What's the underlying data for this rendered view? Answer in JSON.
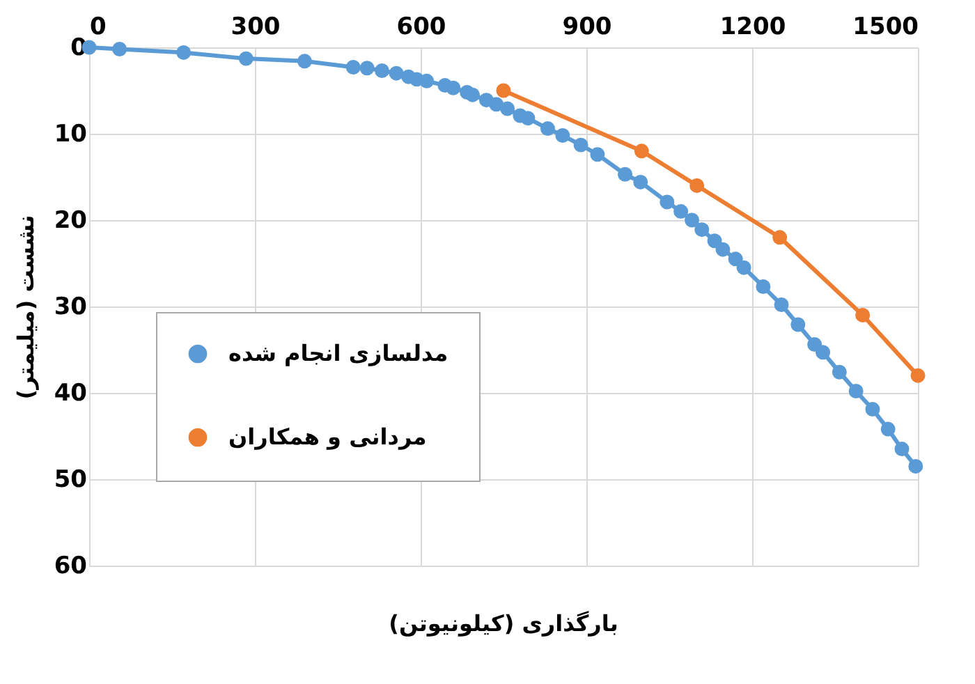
{
  "chart_data": {
    "type": "line",
    "xlabel": "بارگذاری (کیلونیوتن)",
    "ylabel": "نشست (میلیمتر)",
    "xlim": [
      0,
      1500
    ],
    "xticks": [
      0,
      300,
      600,
      900,
      1200,
      1500
    ],
    "ylim": [
      60,
      0
    ],
    "yticks": [
      0,
      10,
      20,
      30,
      40,
      50,
      60
    ],
    "grid": true,
    "legend": "left",
    "marker": "circle",
    "line_style": "solid",
    "series": [
      {
        "name": "مدلسازی انجام شده",
        "color": "#5b9bd5",
        "x": [
          0,
          55,
          171,
          284,
          390,
          478,
          503,
          530,
          556,
          578,
          593,
          611,
          644,
          659,
          684,
          694,
          719,
          737,
          757,
          780,
          794,
          830,
          857,
          890,
          920,
          970,
          998,
          1046,
          1071,
          1091,
          1109,
          1132,
          1147,
          1170,
          1185,
          1220,
          1253,
          1283,
          1313,
          1328,
          1358,
          1388,
          1418,
          1446,
          1471,
          1496
        ],
        "values": [
          0,
          0.2,
          0.6,
          1.3,
          1.6,
          2.3,
          2.4,
          2.7,
          3.0,
          3.4,
          3.7,
          3.9,
          4.4,
          4.7,
          5.2,
          5.5,
          6.1,
          6.6,
          7.1,
          7.9,
          8.2,
          9.4,
          10.2,
          11.3,
          12.4,
          14.7,
          15.6,
          17.9,
          19.0,
          20.0,
          21.1,
          22.4,
          23.4,
          24.5,
          25.5,
          27.7,
          29.8,
          32.1,
          34.4,
          35.3,
          37.6,
          39.8,
          41.9,
          44.2,
          46.5,
          48.5
        ]
      },
      {
        "name": "مردانی و همکاران",
        "color": "#ed7d31",
        "x": [
          750,
          1000,
          1100,
          1250,
          1400,
          1500
        ],
        "values": [
          5,
          12,
          16,
          22,
          31,
          38
        ]
      }
    ]
  }
}
